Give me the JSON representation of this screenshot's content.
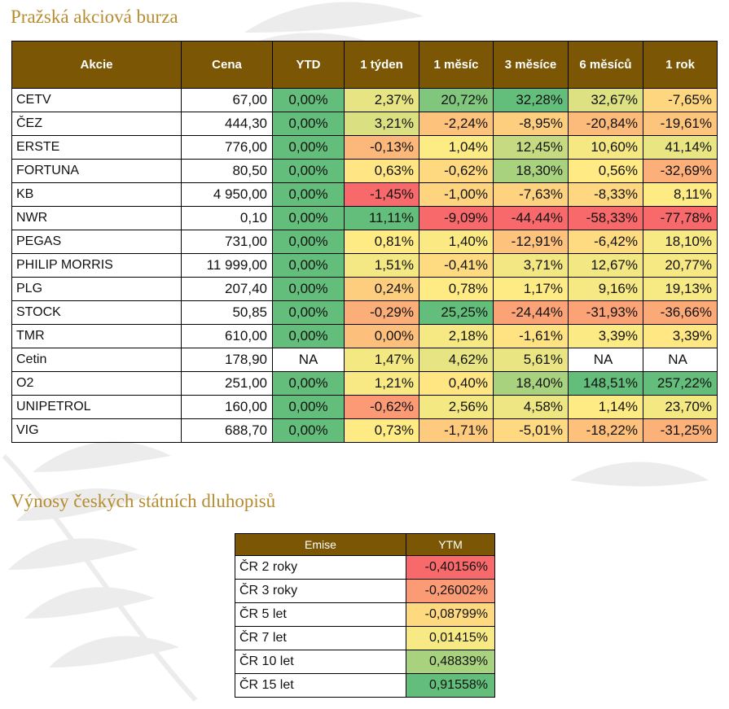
{
  "headings": {
    "stocks": "Pražská akciová burza",
    "bonds": "Výnosy českých státních dluhopisů"
  },
  "colors": {
    "header_bg": "#7b5705",
    "heading_text": "#b68c2e",
    "scale_red": "#f8696b",
    "scale_yellow": "#ffeb84",
    "scale_green": "#63be7b"
  },
  "stocks": {
    "columns": [
      "Akcie",
      "Cena",
      "YTD",
      "1 týden",
      "1 měsíc",
      "3 měsíce",
      "6 měsíců",
      "1 rok"
    ],
    "rows": [
      {
        "name": "CETV",
        "price": "67,00",
        "cells": [
          "0,00%",
          "2,37%",
          "20,72%",
          "32,28%",
          "32,67%",
          "-7,65%"
        ]
      },
      {
        "name": "ČEZ",
        "price": "444,30",
        "cells": [
          "0,00%",
          "3,21%",
          "-2,24%",
          "-8,95%",
          "-20,84%",
          "-19,61%"
        ]
      },
      {
        "name": "ERSTE",
        "price": "776,00",
        "cells": [
          "0,00%",
          "-0,13%",
          "1,04%",
          "12,45%",
          "10,60%",
          "41,14%"
        ]
      },
      {
        "name": "FORTUNA",
        "price": "80,50",
        "cells": [
          "0,00%",
          "0,63%",
          "-0,62%",
          "18,30%",
          "0,56%",
          "-32,69%"
        ]
      },
      {
        "name": "KB",
        "price": "4 950,00",
        "cells": [
          "0,00%",
          "-1,45%",
          "-1,00%",
          "-7,63%",
          "-8,33%",
          "8,11%"
        ]
      },
      {
        "name": "NWR",
        "price": "0,10",
        "cells": [
          "0,00%",
          "11,11%",
          "-9,09%",
          "-44,44%",
          "-58,33%",
          "-77,78%"
        ]
      },
      {
        "name": "PEGAS",
        "price": "731,00",
        "cells": [
          "0,00%",
          "0,81%",
          "1,40%",
          "-12,91%",
          "-6,42%",
          "18,10%"
        ]
      },
      {
        "name": "PHILIP MORRIS",
        "price": "11 999,00",
        "cells": [
          "0,00%",
          "1,51%",
          "-0,41%",
          "3,71%",
          "12,67%",
          "20,77%"
        ]
      },
      {
        "name": "PLG",
        "price": "207,40",
        "cells": [
          "0,00%",
          "0,24%",
          "0,78%",
          "1,17%",
          "9,16%",
          "19,13%"
        ]
      },
      {
        "name": "STOCK",
        "price": "50,85",
        "cells": [
          "0,00%",
          "-0,29%",
          "25,25%",
          "-24,44%",
          "-31,93%",
          "-36,66%"
        ]
      },
      {
        "name": "TMR",
        "price": "610,00",
        "cells": [
          "0,00%",
          "0,00%",
          "2,18%",
          "-1,61%",
          "3,39%",
          "3,39%"
        ]
      },
      {
        "name": "Cetin",
        "price": "178,90",
        "cells": [
          "NA",
          "1,47%",
          "4,62%",
          "5,61%",
          "NA",
          "NA"
        ]
      },
      {
        "name": "O2",
        "price": "251,00",
        "cells": [
          "0,00%",
          "1,21%",
          "0,40%",
          "18,40%",
          "148,51%",
          "257,22%"
        ]
      },
      {
        "name": "UNIPETROL",
        "price": "160,00",
        "cells": [
          "0,00%",
          "-0,62%",
          "2,56%",
          "4,58%",
          "1,14%",
          "23,70%"
        ]
      },
      {
        "name": "VIG",
        "price": "688,70",
        "cells": [
          "0,00%",
          "0,73%",
          "-1,71%",
          "-5,01%",
          "-18,22%",
          "-31,25%"
        ]
      }
    ]
  },
  "bonds": {
    "columns": [
      "Emise",
      "YTM"
    ],
    "rows": [
      {
        "emise": "ČR 2 roky",
        "ytm": "-0,40156%"
      },
      {
        "emise": "ČR 3 roky",
        "ytm": "-0,26002%"
      },
      {
        "emise": "ČR 5 let",
        "ytm": "-0,08799%"
      },
      {
        "emise": "ČR 7 let",
        "ytm": "0,01415%"
      },
      {
        "emise": "ČR 10 let",
        "ytm": "0,48839%"
      },
      {
        "emise": "ČR 15 let",
        "ytm": "0,91558%"
      }
    ]
  }
}
